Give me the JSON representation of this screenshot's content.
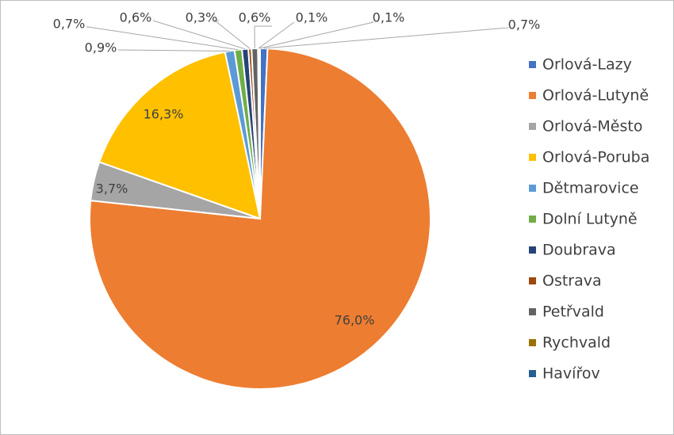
{
  "chart_data": {
    "type": "pie",
    "title": "",
    "legend_position": "right",
    "slices": [
      {
        "name": "Orlová-Lazy",
        "value": 0.7,
        "label": "0,7%",
        "color": "#4472c4"
      },
      {
        "name": "Orlová-Lutyně",
        "value": 76.0,
        "label": "76,0%",
        "color": "#ed7d31"
      },
      {
        "name": "Orlová-Město",
        "value": 3.7,
        "label": "3,7%",
        "color": "#a5a5a5"
      },
      {
        "name": "Orlová-Poruba",
        "value": 16.3,
        "label": "16,3%",
        "color": "#ffc000"
      },
      {
        "name": "Dětmarovice",
        "value": 0.9,
        "label": "0,9%",
        "color": "#5b9bd5"
      },
      {
        "name": "Dolní Lutyně",
        "value": 0.7,
        "label": "0,7%",
        "color": "#70ad47"
      },
      {
        "name": "Doubrava",
        "value": 0.6,
        "label": "0,6%",
        "color": "#264478"
      },
      {
        "name": "Ostrava",
        "value": 0.3,
        "label": "0,3%",
        "color": "#9e480e"
      },
      {
        "name": "Petřvald",
        "value": 0.6,
        "label": "0,6%",
        "color": "#636363"
      },
      {
        "name": "Rychvald",
        "value": 0.1,
        "label": "0,1%",
        "color": "#997300"
      },
      {
        "name": "Havířov",
        "value": 0.1,
        "label": "0,1%",
        "color": "#255e91"
      }
    ]
  }
}
